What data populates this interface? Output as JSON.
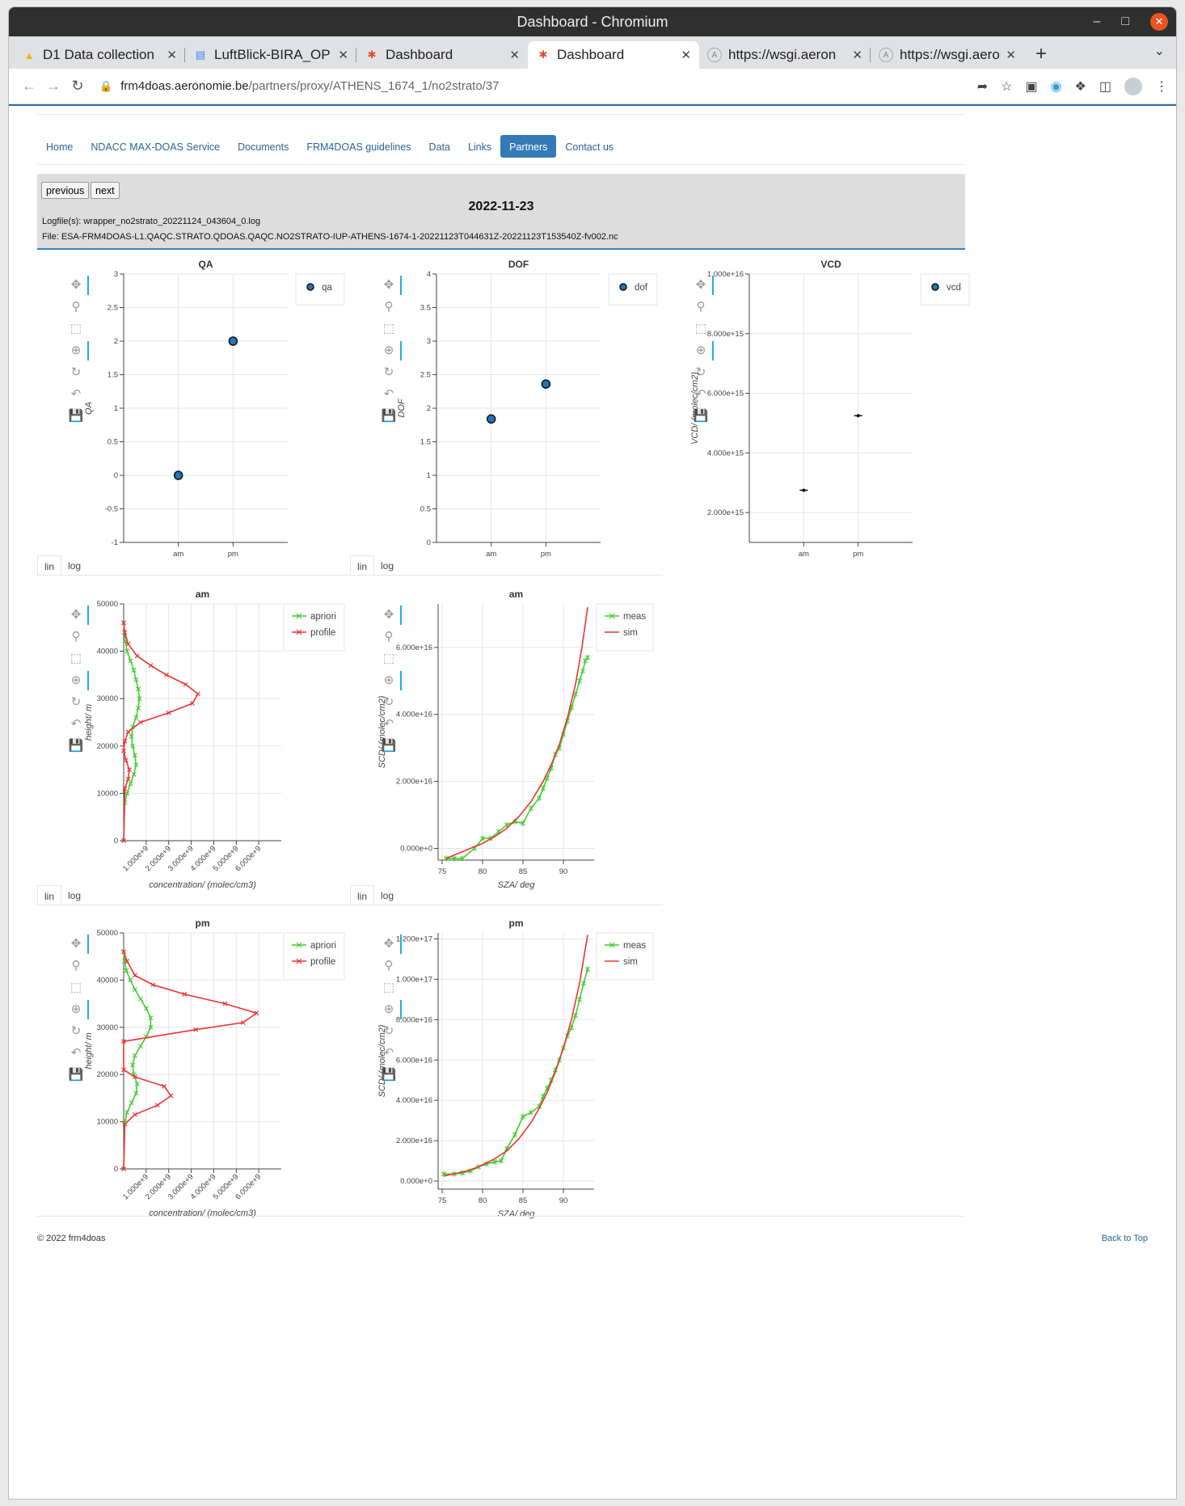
{
  "window": {
    "title": "Dashboard - Chromium"
  },
  "tabs": [
    {
      "label": "D1 Data collection",
      "icon": "google-drive-icon",
      "icon_color": "#f4b400"
    },
    {
      "label": "LuftBlick-BIRA_OP",
      "icon": "google-docs-icon",
      "icon_color": "#4285f4"
    },
    {
      "label": "Dashboard",
      "icon": "joomla-icon",
      "icon_color": "#e44d26"
    },
    {
      "label": "Dashboard",
      "icon": "joomla-icon",
      "icon_color": "#e44d26",
      "active": true
    },
    {
      "label": "https://wsgi.aeron",
      "icon": "site-icon",
      "icon_color": "#888888"
    },
    {
      "label": "https://wsgi.aeron",
      "icon": "site-icon",
      "icon_color": "#888888"
    }
  ],
  "address": {
    "host": "frm4doas.aeronomie.be",
    "path": "/partners/proxy/ATHENS_1674_1/no2strato/37"
  },
  "nav": [
    {
      "label": "Home"
    },
    {
      "label": "NDACC MAX-DOAS Service"
    },
    {
      "label": "Documents"
    },
    {
      "label": "FRM4DOAS guidelines"
    },
    {
      "label": "Data"
    },
    {
      "label": "Links"
    },
    {
      "label": "Partners",
      "active": true
    },
    {
      "label": "Contact us"
    }
  ],
  "header": {
    "previous": "previous",
    "next": "next",
    "date": "2022-11-23",
    "logfile": "Logfile(s): wrapper_no2strato_20221124_043604_0.log",
    "file": "File: ESA-FRM4DOAS-L1.QAQC.STRATO.QDOAS.QAQC.NO2STRATO-IUP-ATHENS-1674-1-20221123T044631Z-20221123T153540Z-fv002.nc"
  },
  "scale_tabs": {
    "lin": "lin",
    "log": "log"
  },
  "footer": {
    "copyright": "© 2022 frm4doas",
    "back_to_top": "Back to Top"
  },
  "colors": {
    "green": "#44cc33",
    "red": "#ee3333",
    "point": "#1f77b4",
    "accent": "#337ab7"
  },
  "chart_data": [
    {
      "id": "qa",
      "type": "scatter",
      "title": "QA",
      "ylabel": "QA",
      "xlabel": "",
      "categories": [
        "am",
        "pm"
      ],
      "ylim": [
        -1,
        3
      ],
      "yticks": [
        "-1",
        "-0.5",
        "0",
        "0.5",
        "1",
        "1.5",
        "2",
        "2.5",
        "3"
      ],
      "series": [
        {
          "name": "qa",
          "values": [
            0,
            2
          ]
        }
      ]
    },
    {
      "id": "dof",
      "type": "scatter",
      "title": "DOF",
      "ylabel": "DOF",
      "xlabel": "",
      "categories": [
        "am",
        "pm"
      ],
      "ylim": [
        0,
        4
      ],
      "yticks": [
        "0",
        "0.5",
        "1",
        "1.5",
        "2",
        "2.5",
        "3",
        "3.5",
        "4"
      ],
      "series": [
        {
          "name": "dof",
          "values": [
            1.84,
            2.36
          ]
        }
      ]
    },
    {
      "id": "vcd",
      "type": "scatter",
      "title": "VCD",
      "ylabel": "VCD/ (molec/cm2)",
      "xlabel": "",
      "categories": [
        "am",
        "pm"
      ],
      "ylim": [
        1000000000000000.0,
        1e+16
      ],
      "yticks": [
        "2.000e+15",
        "4.000e+15",
        "6.000e+15",
        "8.000e+15",
        "1.000e+16"
      ],
      "ytick_values": [
        2000000000000000.0,
        4000000000000000.0,
        6000000000000000.0,
        8000000000000000.0,
        1e+16
      ],
      "series": [
        {
          "name": "vcd",
          "values": [
            2750000000000000.0,
            5250000000000000.0
          ]
        }
      ]
    },
    {
      "id": "prof_am",
      "type": "line",
      "title": "am",
      "ylabel": "height/ m",
      "xlabel": "concentration/ (molec/cm3)",
      "xlim": [
        0,
        7000000000.0
      ],
      "ylim": [
        0,
        50000
      ],
      "xticks": [
        "1.000e+9",
        "2.000e+9",
        "3.000e+9",
        "4.000e+9",
        "5.000e+9",
        "6.000e+9"
      ],
      "xtick_values": [
        1000000000.0,
        2000000000.0,
        3000000000.0,
        4000000000.0,
        5000000000.0,
        6000000000.0
      ],
      "yticks": [
        "0",
        "10000",
        "20000",
        "30000",
        "40000",
        "50000"
      ],
      "ytick_values": [
        0,
        10000,
        20000,
        30000,
        40000,
        50000
      ],
      "series": [
        {
          "name": "apriori",
          "color": "green",
          "x": [
            0.0,
            30000000.0,
            80000000.0,
            150000000.0,
            300000000.0,
            450000000.0,
            550000000.0,
            650000000.0,
            700000000.0,
            650000000.0,
            550000000.0,
            400000000.0,
            350000000.0,
            400000000.0,
            500000000.0,
            550000000.0,
            450000000.0,
            300000000.0,
            150000000.0,
            50000000.0,
            0.0
          ],
          "y": [
            46000,
            44000,
            42000,
            40000,
            38000,
            36000,
            34000,
            32000,
            30000,
            28000,
            26000,
            24000,
            22000,
            20000,
            18000,
            16000,
            14000,
            12000,
            10000,
            8000,
            0
          ]
        },
        {
          "name": "profile",
          "color": "red",
          "x": [
            0.0,
            50000000.0,
            200000000.0,
            600000000.0,
            1200000000.0,
            1900000000.0,
            2750000000.0,
            3300000000.0,
            3050000000.0,
            2000000000.0,
            750000000.0,
            200000000.0,
            50000000.0,
            0.0,
            100000000.0,
            250000000.0,
            200000000.0,
            50000000.0,
            0.0
          ],
          "y": [
            46000,
            44000,
            41500,
            39000,
            37000,
            35000,
            33000,
            31000,
            29000,
            27000,
            25000,
            23000,
            21000,
            19000,
            17000,
            15000,
            13000,
            11000,
            0
          ]
        }
      ]
    },
    {
      "id": "scd_am",
      "type": "line",
      "title": "am",
      "ylabel": "SCD/ (molec/cm2)",
      "xlabel": "SZA/ deg",
      "xlim": [
        74.5,
        93.8
      ],
      "ylim": [
        -3500000000000000.0,
        7.3e+16
      ],
      "xticks": [
        "75",
        "80",
        "85",
        "90"
      ],
      "xtick_values": [
        75,
        80,
        85,
        90
      ],
      "yticks": [
        "0.000e+0",
        "2.000e+16",
        "4.000e+16",
        "6.000e+16"
      ],
      "ytick_values": [
        0,
        2e+16,
        4e+16,
        6e+16
      ],
      "series": [
        {
          "name": "meas",
          "color": "green",
          "x": [
            75.5,
            76.5,
            77.5,
            79.0,
            80.0,
            81.0,
            82.0,
            83.0,
            84.0,
            85.0,
            86.0,
            87.0,
            87.5,
            88.0,
            88.5,
            89.0,
            89.5,
            90.0,
            90.5,
            91.0,
            91.5,
            92.0,
            92.4,
            92.7,
            93.0
          ],
          "y": [
            -3000000000000000.0,
            -3000000000000000.0,
            -3000000000000000.0,
            0.0,
            3000000000000000.0,
            3000000000000000.0,
            5000000000000000.0,
            7000000000000000.0,
            8000000000000000.0,
            7500000000000000.0,
            1.2e+16,
            1.5e+16,
            1.8e+16,
            2.1e+16,
            2.4e+16,
            2.8e+16,
            3e+16,
            3.4e+16,
            3.8e+16,
            4.2e+16,
            4.6e+16,
            5e+16,
            5.3e+16,
            5.6e+16,
            5.7e+16
          ]
        },
        {
          "name": "sim",
          "color": "red",
          "x": [
            75.5,
            77.0,
            78.5,
            80.0,
            81.5,
            83.0,
            84.5,
            86.0,
            87.5,
            88.5,
            89.5,
            90.5,
            91.5,
            92.3,
            93.0
          ],
          "y": [
            -3000000000000000.0,
            -1500000000000000.0,
            0.0,
            1500000000000000.0,
            3500000000000000.0,
            6000000000000000.0,
            9500000000000000.0,
            1.4e+16,
            2e+16,
            2.5e+16,
            3.1e+16,
            3.9e+16,
            4.9e+16,
            6e+16,
            7.2e+16
          ]
        }
      ]
    },
    {
      "id": "prof_pm",
      "type": "line",
      "title": "pm",
      "ylabel": "height/ m",
      "xlabel": "concentration/ (molec/cm3)",
      "xlim": [
        0,
        7000000000.0
      ],
      "ylim": [
        0,
        50000
      ],
      "xticks": [
        "1.000e+9",
        "2.000e+9",
        "3.000e+9",
        "4.000e+9",
        "5.000e+9",
        "6.000e+9"
      ],
      "xtick_values": [
        1000000000.0,
        2000000000.0,
        3000000000.0,
        4000000000.0,
        5000000000.0,
        6000000000.0
      ],
      "yticks": [
        "0",
        "10000",
        "20000",
        "30000",
        "40000",
        "50000"
      ],
      "ytick_values": [
        0,
        10000,
        20000,
        30000,
        40000,
        50000
      ],
      "series": [
        {
          "name": "apriori",
          "color": "green",
          "x": [
            0.0,
            50000000.0,
            120000000.0,
            300000000.0,
            500000000.0,
            750000000.0,
            1000000000.0,
            1200000000.0,
            1200000000.0,
            1000000000.0,
            750000000.0,
            500000000.0,
            400000000.0,
            450000000.0,
            600000000.0,
            550000000.0,
            350000000.0,
            150000000.0,
            50000000.0,
            0.0
          ],
          "y": [
            46000,
            44000,
            42000,
            40000,
            38000,
            36000,
            34000,
            32000,
            30000,
            28000,
            26000,
            24000,
            22000,
            20000,
            18000,
            16000,
            14000,
            12000,
            10000,
            0
          ]
        },
        {
          "name": "profile",
          "color": "red",
          "x": [
            0.0,
            150000000.0,
            500000000.0,
            1300000000.0,
            2700000000.0,
            4500000000.0,
            5900000000.0,
            5300000000.0,
            3200000000.0,
            0.0,
            0.0,
            500000000.0,
            1800000000.0,
            2100000000.0,
            1500000000.0,
            500000000.0,
            50000000.0,
            0.0
          ],
          "y": [
            46000,
            44000,
            41000,
            39000,
            37000,
            35000,
            33000,
            31000,
            29500,
            27000,
            21000,
            19500,
            17500,
            15500,
            13500,
            11500,
            9500,
            0
          ]
        }
      ]
    },
    {
      "id": "scd_pm",
      "type": "line",
      "title": "pm",
      "ylabel": "SCD/ (molec/cm2)",
      "xlabel": "SZA/ deg",
      "xlim": [
        74.5,
        93.8
      ],
      "ylim": [
        -4000000000000000.0,
        1.23e+17
      ],
      "xticks": [
        "75",
        "80",
        "85",
        "90"
      ],
      "xtick_values": [
        75,
        80,
        85,
        90
      ],
      "yticks": [
        "0.000e+0",
        "2.000e+16",
        "4.000e+16",
        "6.000e+16",
        "8.000e+16",
        "1.000e+17",
        "1.200e+17"
      ],
      "ytick_values": [
        0,
        2e+16,
        4e+16,
        6e+16,
        8e+16,
        1e+17,
        1.2e+17
      ],
      "series": [
        {
          "name": "meas",
          "color": "green",
          "x": [
            75.2,
            76.5,
            77.5,
            78.5,
            79.5,
            80.5,
            81.5,
            82.3,
            83.0,
            84.0,
            85.0,
            86.0,
            87.0,
            87.5,
            88.0,
            88.5,
            89.0,
            89.5,
            90.0,
            90.5,
            91.0,
            91.5,
            92.0,
            92.5,
            93.0
          ],
          "y": [
            3500000000000000.0,
            3500000000000000.0,
            4000000000000000.0,
            5000000000000000.0,
            7000000000000000.0,
            8500000000000000.0,
            9500000000000000.0,
            1e+16,
            1.6e+16,
            2.3e+16,
            3.2e+16,
            3.4e+16,
            3.7e+16,
            4.2e+16,
            4.6e+16,
            5e+16,
            5.5e+16,
            6e+16,
            6.6e+16,
            7.2e+16,
            7.6e+16,
            8.2e+16,
            9e+16,
            9.8e+16,
            1.05e+17
          ]
        },
        {
          "name": "sim",
          "color": "red",
          "x": [
            75.2,
            77.0,
            78.5,
            80.0,
            81.5,
            83.0,
            84.5,
            86.0,
            87.0,
            88.0,
            89.0,
            90.0,
            91.0,
            92.0,
            93.0
          ],
          "y": [
            2500000000000000.0,
            4000000000000000.0,
            5500000000000000.0,
            8000000000000000.0,
            1.1e+16,
            1.5e+16,
            2.1e+16,
            2.9e+16,
            3.6e+16,
            4.4e+16,
            5.4e+16,
            6.6e+16,
            8e+16,
            9.8e+16,
            1.22e+17
          ]
        }
      ]
    }
  ]
}
